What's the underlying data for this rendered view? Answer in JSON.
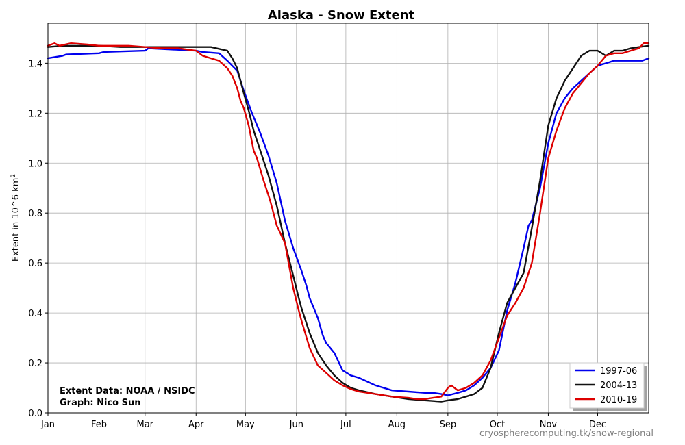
{
  "chart_data": {
    "type": "line",
    "title": "Alaska - Snow Extent",
    "ylabel": "Extent in 10^6 km",
    "ylabel_sup": "2",
    "xlabel": "",
    "x_ticks": [
      "Jan",
      "Feb",
      "Mar",
      "Apr",
      "May",
      "Jun",
      "Jul",
      "Aug",
      "Sep",
      "Oct",
      "Nov",
      "Dec"
    ],
    "x_tick_days": [
      1,
      32,
      60,
      91,
      121,
      152,
      182,
      213,
      244,
      274,
      305,
      335
    ],
    "xlim": [
      1,
      366
    ],
    "ylim": [
      0,
      1.56
    ],
    "y_ticks": [
      0.0,
      0.2,
      0.4,
      0.6,
      0.8,
      1.0,
      1.2,
      1.4
    ],
    "y_tick_labels": [
      "0.0",
      "0.2",
      "0.4",
      "0.6",
      "0.8",
      "1.0",
      "1.2",
      "1.4"
    ],
    "grid": true,
    "legend_position": "bottom-right",
    "series": [
      {
        "name": "1997-06",
        "color": "#0000ee",
        "x": [
          1,
          10,
          12,
          32,
          35,
          60,
          62,
          91,
          95,
          105,
          110,
          116,
          120,
          125,
          130,
          135,
          140,
          145,
          150,
          155,
          158,
          160,
          165,
          168,
          170,
          175,
          180,
          185,
          190,
          200,
          210,
          220,
          230,
          235,
          240,
          244,
          250,
          255,
          260,
          265,
          270,
          275,
          280,
          285,
          290,
          293,
          295,
          300,
          305,
          310,
          315,
          320,
          325,
          330,
          335,
          340,
          345,
          355,
          362,
          366
        ],
        "y": [
          1.42,
          1.43,
          1.435,
          1.44,
          1.445,
          1.45,
          1.46,
          1.45,
          1.445,
          1.44,
          1.41,
          1.37,
          1.29,
          1.2,
          1.12,
          1.03,
          0.92,
          0.77,
          0.66,
          0.57,
          0.51,
          0.46,
          0.38,
          0.31,
          0.28,
          0.24,
          0.17,
          0.15,
          0.14,
          0.11,
          0.09,
          0.085,
          0.08,
          0.08,
          0.075,
          0.07,
          0.08,
          0.09,
          0.11,
          0.14,
          0.18,
          0.25,
          0.41,
          0.52,
          0.66,
          0.75,
          0.77,
          0.9,
          1.08,
          1.2,
          1.26,
          1.3,
          1.33,
          1.36,
          1.39,
          1.4,
          1.41,
          1.41,
          1.41,
          1.42
        ]
      },
      {
        "name": "2004-13",
        "color": "#111111",
        "x": [
          1,
          10,
          15,
          32,
          45,
          60,
          70,
          91,
          100,
          110,
          113,
          116,
          118,
          120,
          123,
          126,
          130,
          135,
          140,
          145,
          150,
          153,
          155,
          160,
          165,
          170,
          175,
          180,
          185,
          190,
          200,
          210,
          220,
          230,
          240,
          244,
          250,
          255,
          260,
          265,
          270,
          275,
          280,
          285,
          290,
          295,
          300,
          305,
          310,
          315,
          320,
          325,
          330,
          335,
          340,
          345,
          350,
          355,
          360,
          366
        ],
        "y": [
          1.465,
          1.47,
          1.47,
          1.47,
          1.465,
          1.465,
          1.465,
          1.465,
          1.465,
          1.45,
          1.42,
          1.38,
          1.33,
          1.28,
          1.21,
          1.13,
          1.05,
          0.95,
          0.83,
          0.68,
          0.55,
          0.47,
          0.42,
          0.32,
          0.24,
          0.19,
          0.15,
          0.12,
          0.1,
          0.09,
          0.075,
          0.065,
          0.055,
          0.05,
          0.045,
          0.05,
          0.055,
          0.065,
          0.075,
          0.1,
          0.18,
          0.32,
          0.44,
          0.5,
          0.56,
          0.74,
          0.93,
          1.15,
          1.26,
          1.33,
          1.38,
          1.43,
          1.45,
          1.45,
          1.43,
          1.45,
          1.45,
          1.46,
          1.465,
          1.47
        ]
      },
      {
        "name": "2010-19",
        "color": "#dd0000",
        "x": [
          1,
          5,
          8,
          15,
          25,
          32,
          50,
          60,
          70,
          80,
          91,
          95,
          100,
          105,
          110,
          113,
          116,
          118,
          120,
          123,
          126,
          128,
          132,
          136,
          140,
          145,
          150,
          153,
          155,
          160,
          165,
          170,
          175,
          180,
          185,
          190,
          200,
          210,
          220,
          225,
          230,
          235,
          240,
          244,
          246,
          250,
          255,
          260,
          265,
          270,
          275,
          280,
          285,
          290,
          295,
          300,
          305,
          310,
          315,
          320,
          325,
          330,
          335,
          340,
          345,
          350,
          355,
          360,
          363,
          366
        ],
        "y": [
          1.47,
          1.48,
          1.47,
          1.48,
          1.475,
          1.47,
          1.47,
          1.465,
          1.46,
          1.46,
          1.45,
          1.43,
          1.42,
          1.41,
          1.38,
          1.35,
          1.3,
          1.25,
          1.22,
          1.15,
          1.05,
          1.02,
          0.93,
          0.85,
          0.75,
          0.68,
          0.5,
          0.42,
          0.37,
          0.26,
          0.19,
          0.16,
          0.13,
          0.11,
          0.095,
          0.085,
          0.075,
          0.065,
          0.06,
          0.055,
          0.055,
          0.06,
          0.065,
          0.1,
          0.11,
          0.09,
          0.1,
          0.12,
          0.15,
          0.21,
          0.3,
          0.39,
          0.44,
          0.5,
          0.6,
          0.8,
          1.02,
          1.13,
          1.22,
          1.28,
          1.32,
          1.36,
          1.39,
          1.43,
          1.44,
          1.44,
          1.45,
          1.46,
          1.48,
          1.48
        ]
      }
    ],
    "annotations": [
      "Extent Data: NOAA / NSIDC",
      "Graph: Nico Sun"
    ]
  },
  "watermark": "cryospherecomputing.tk/snow-regional"
}
